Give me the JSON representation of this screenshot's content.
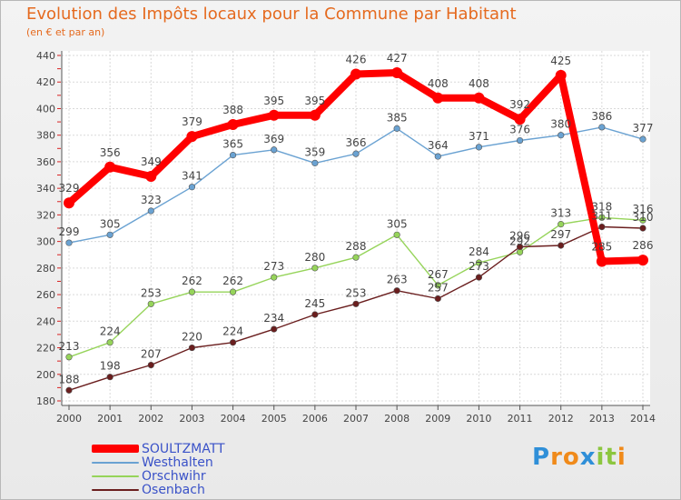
{
  "header": {
    "title": "Evolution des Impôts locaux pour la Commune par Habitant",
    "subtitle": "(en € et par an)"
  },
  "chart_data": {
    "type": "line",
    "title": "Evolution des Impôts locaux pour la Commune par Habitant",
    "subtitle": "(en € et par an)",
    "xlabel": "",
    "ylabel": "",
    "x": [
      "2000",
      "2001",
      "2002",
      "2003",
      "2004",
      "2005",
      "2006",
      "2007",
      "2008",
      "2009",
      "2010",
      "2011",
      "2012",
      "2013",
      "2014"
    ],
    "ylim": [
      180,
      440
    ],
    "yticks": [
      180,
      200,
      220,
      240,
      260,
      280,
      300,
      320,
      340,
      360,
      380,
      400,
      420,
      440
    ],
    "grid": true,
    "legend_position": "bottom-left",
    "series": [
      {
        "name": "SOULTZMATT",
        "color": "#ff0000",
        "emphasis": true,
        "values": [
          329,
          356,
          349,
          379,
          388,
          395,
          395,
          426,
          427,
          408,
          408,
          392,
          425,
          285,
          286
        ]
      },
      {
        "name": "Westhalten",
        "color": "#6aa2d2",
        "emphasis": false,
        "values": [
          299,
          305,
          323,
          341,
          365,
          369,
          359,
          366,
          385,
          364,
          371,
          376,
          380,
          386,
          377
        ]
      },
      {
        "name": "Orschwihr",
        "color": "#96d45a",
        "emphasis": false,
        "values": [
          213,
          224,
          253,
          262,
          262,
          273,
          280,
          288,
          305,
          267,
          284,
          292,
          313,
          318,
          316
        ]
      },
      {
        "name": "Osenbach",
        "color": "#6a1e1e",
        "emphasis": false,
        "values": [
          188,
          198,
          207,
          220,
          224,
          234,
          245,
          253,
          263,
          257,
          273,
          296,
          297,
          311,
          310
        ]
      }
    ]
  },
  "logo": {
    "letters": [
      "P",
      "r",
      "o",
      "x",
      "i",
      "t",
      "i"
    ],
    "colors": [
      "#2f8fd8",
      "#f08a1a",
      "#f08a1a",
      "#2f8fd8",
      "#8cc63f",
      "#8cc63f",
      "#f08a1a"
    ]
  }
}
